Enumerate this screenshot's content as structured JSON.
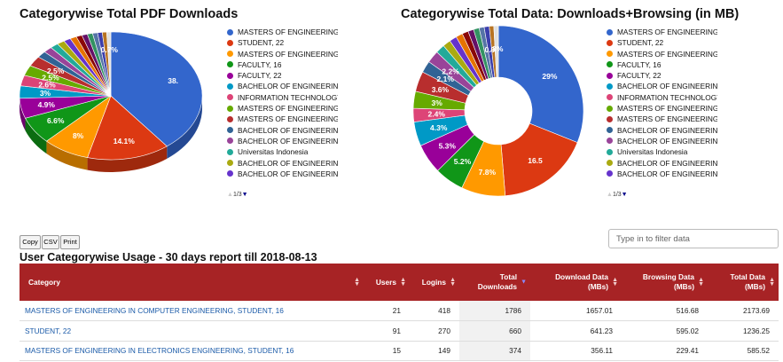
{
  "charts": {
    "downloads": {
      "title": "Categorywise Total PDF Downloads",
      "pager": "1/3"
    },
    "data": {
      "title": "Categorywise Total Data: Downloads+Browsing (in MB)",
      "pager": "1/3"
    }
  },
  "legend": [
    {
      "label": "MASTERS OF ENGINEERING II",
      "color": "#3366cc"
    },
    {
      "label": "STUDENT, 22",
      "color": "#dc3912"
    },
    {
      "label": "MASTERS OF ENGINEERING II",
      "color": "#ff9900"
    },
    {
      "label": "FACULTY, 16",
      "color": "#109618"
    },
    {
      "label": "FACULTY, 22",
      "color": "#990099"
    },
    {
      "label": "BACHELOR OF ENGINEERING",
      "color": "#0099c6"
    },
    {
      "label": "INFORMATION TECHNOLOGY-",
      "color": "#dd4477"
    },
    {
      "label": "MASTERS OF ENGINEERING II",
      "color": "#66aa00"
    },
    {
      "label": "MASTERS OF ENGINEERING II",
      "color": "#b82e2e"
    },
    {
      "label": "BACHELOR OF ENGINEERING",
      "color": "#316395"
    },
    {
      "label": "BACHELOR OF ENGINEERING",
      "color": "#994499"
    },
    {
      "label": "Universitas Indonesia",
      "color": "#22aa99"
    },
    {
      "label": "BACHELOR OF ENGINEERING",
      "color": "#aaaa11"
    },
    {
      "label": "BACHELOR OF ENGINEERING",
      "color": "#6633cc"
    }
  ],
  "chart_data": [
    {
      "type": "pie",
      "title": "Categorywise Total PDF Downloads",
      "slices": [
        {
          "label": "MASTERS OF ENGINEERING II",
          "value": 38,
          "display": "38.",
          "color": "#3366cc"
        },
        {
          "label": "STUDENT, 22",
          "value": 14.1,
          "display": "14.1%",
          "color": "#dc3912"
        },
        {
          "label": "MASTERS OF ENGINEERING II",
          "value": 8,
          "display": "8%",
          "color": "#ff9900"
        },
        {
          "label": "FACULTY, 16",
          "value": 6.6,
          "display": "6.6%",
          "color": "#109618"
        },
        {
          "label": "FACULTY, 22",
          "value": 4.9,
          "display": "4.9%",
          "color": "#990099"
        },
        {
          "label": "BACHELOR OF ENGINEERING",
          "value": 3,
          "display": "3%",
          "color": "#0099c6"
        },
        {
          "label": "INFORMATION TECHNOLOGY-",
          "value": 2.6,
          "display": "2.6%",
          "color": "#dd4477"
        },
        {
          "label": "MASTERS OF ENGINEERING II",
          "value": 2.5,
          "display": "2.5%",
          "color": "#66aa00"
        },
        {
          "label": "MASTERS OF ENGINEERING II",
          "value": 2.5,
          "display": "2.5%",
          "color": "#b82e2e"
        },
        {
          "label": "BACHELOR OF ENGINEERING",
          "value": 1.6,
          "display": "",
          "color": "#316395"
        },
        {
          "label": "BACHELOR OF ENGINEERING",
          "value": 1.5,
          "display": "",
          "color": "#994499"
        },
        {
          "label": "Universitas Indonesia",
          "value": 1.4,
          "display": "",
          "color": "#22aa99"
        },
        {
          "label": "BACHELOR OF ENGINEERING",
          "value": 1.3,
          "display": "",
          "color": "#aaaa11"
        },
        {
          "label": "BACHELOR OF ENGINEERING",
          "value": 1.2,
          "display": "",
          "color": "#6633cc"
        },
        {
          "label": "",
          "value": 1.1,
          "display": "",
          "color": "#e67300"
        },
        {
          "label": "",
          "value": 1.0,
          "display": "",
          "color": "#8b0707"
        },
        {
          "label": "",
          "value": 0.95,
          "display": "",
          "color": "#651067"
        },
        {
          "label": "",
          "value": 0.9,
          "display": "",
          "color": "#329262"
        },
        {
          "label": "",
          "value": 0.85,
          "display": "",
          "color": "#5574a6"
        },
        {
          "label": "",
          "value": 0.8,
          "display": "",
          "color": "#3b3eac"
        },
        {
          "label": "",
          "value": 0.75,
          "display": "",
          "color": "#b77322"
        },
        {
          "label": "",
          "value": 0.7,
          "display": "0.7%",
          "color": "#e0e0e0"
        }
      ]
    },
    {
      "type": "pie",
      "donut": true,
      "title": "Categorywise Total Data: Downloads+Browsing (in MB)",
      "slices": [
        {
          "label": "MASTERS OF ENGINEERING II",
          "value": 29,
          "display": "29%",
          "color": "#3366cc"
        },
        {
          "label": "STUDENT, 22",
          "value": 16.5,
          "display": "16.5",
          "color": "#dc3912"
        },
        {
          "label": "MASTERS OF ENGINEERING II",
          "value": 7.8,
          "display": "7.8%",
          "color": "#ff9900"
        },
        {
          "label": "FACULTY, 16",
          "value": 5.2,
          "display": "5.2%",
          "color": "#109618"
        },
        {
          "label": "FACULTY, 22",
          "value": 5.3,
          "display": "5.3%",
          "color": "#990099"
        },
        {
          "label": "BACHELOR OF ENGINEERING",
          "value": 4.3,
          "display": "4.3%",
          "color": "#0099c6"
        },
        {
          "label": "INFORMATION TECHNOLOGY-",
          "value": 2.4,
          "display": "2.4%",
          "color": "#dd4477"
        },
        {
          "label": "MASTERS OF ENGINEERING II",
          "value": 3,
          "display": "3%",
          "color": "#66aa00"
        },
        {
          "label": "MASTERS OF ENGINEERING II",
          "value": 3.6,
          "display": "3.6%",
          "color": "#b82e2e"
        },
        {
          "label": "BACHELOR OF ENGINEERING",
          "value": 2.1,
          "display": "2.1%",
          "color": "#316395"
        },
        {
          "label": "BACHELOR OF ENGINEERING",
          "value": 2.2,
          "display": "2.2%",
          "color": "#994499"
        },
        {
          "label": "Universitas Indonesia",
          "value": 1.6,
          "display": "",
          "color": "#22aa99"
        },
        {
          "label": "BACHELOR OF ENGINEERING",
          "value": 1.4,
          "display": "",
          "color": "#aaaa11"
        },
        {
          "label": "BACHELOR OF ENGINEERING",
          "value": 1.3,
          "display": "",
          "color": "#6633cc"
        },
        {
          "label": "",
          "value": 1.2,
          "display": "",
          "color": "#e67300"
        },
        {
          "label": "",
          "value": 1.1,
          "display": "",
          "color": "#8b0707"
        },
        {
          "label": "",
          "value": 1.0,
          "display": "",
          "color": "#651067"
        },
        {
          "label": "",
          "value": 1.0,
          "display": "",
          "color": "#329262"
        },
        {
          "label": "",
          "value": 0.9,
          "display": "",
          "color": "#5574a6"
        },
        {
          "label": "",
          "value": 0.9,
          "display": "0.9",
          "color": "#3b3eac"
        },
        {
          "label": "",
          "value": 0.8,
          "display": "",
          "color": "#b77322"
        },
        {
          "label": "",
          "value": 0.8,
          "display": ".8%",
          "color": "#e0e0e0"
        }
      ]
    }
  ],
  "toolbar": {
    "copy_label": "Copy",
    "csv_label": "CSV",
    "print_label": "Print",
    "filter_placeholder": "Type in to filter data"
  },
  "report": {
    "title": "User Categorywise Usage - 30 days report till 2018-08-13"
  },
  "table": {
    "headers": {
      "category": "Category",
      "users": "Users",
      "logins": "Logins",
      "total_downloads_1": "Total",
      "total_downloads_2": "Downloads",
      "download_data_1": "Download Data",
      "download_data_2": "(MBs)",
      "browsing_data_1": "Browsing Data",
      "browsing_data_2": "(MBs)",
      "total_data_1": "Total Data",
      "total_data_2": "(MBs)"
    },
    "rows": [
      {
        "category": "MASTERS OF ENGINEERING IN COMPUTER ENGINEERING, STUDENT, 16",
        "users": "21",
        "logins": "418",
        "total_downloads": "1786",
        "download_data": "1657.01",
        "browsing_data": "516.68",
        "total_data": "2173.69"
      },
      {
        "category": "STUDENT, 22",
        "users": "91",
        "logins": "270",
        "total_downloads": "660",
        "download_data": "641.23",
        "browsing_data": "595.02",
        "total_data": "1236.25"
      },
      {
        "category": "MASTERS OF ENGINEERING IN ELECTRONICS ENGINEERING, STUDENT, 16",
        "users": "15",
        "logins": "149",
        "total_downloads": "374",
        "download_data": "356.11",
        "browsing_data": "229.41",
        "total_data": "585.52"
      }
    ]
  }
}
